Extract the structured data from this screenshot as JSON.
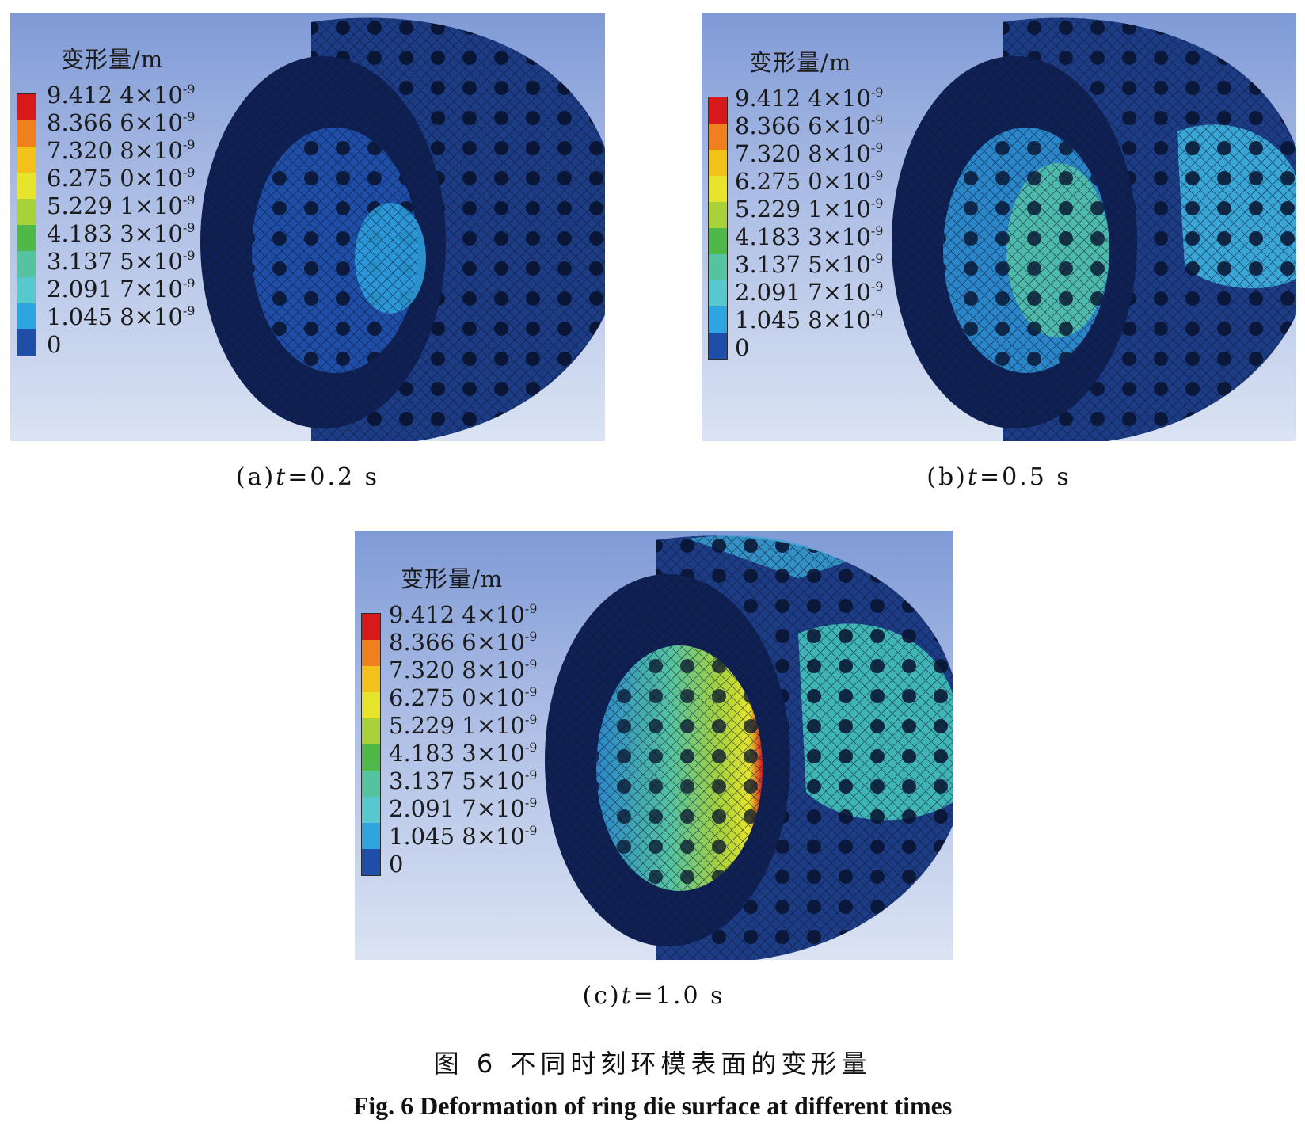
{
  "legend": {
    "title": "变形量/m",
    "ticks": [
      {
        "mantissa": "9.412 4×10",
        "exp": "-9"
      },
      {
        "mantissa": "8.366 6×10",
        "exp": "-9"
      },
      {
        "mantissa": "7.320 8×10",
        "exp": "-9"
      },
      {
        "mantissa": "6.275 0×10",
        "exp": "-9"
      },
      {
        "mantissa": "5.229 1×10",
        "exp": "-9"
      },
      {
        "mantissa": "4.183 3×10",
        "exp": "-9"
      },
      {
        "mantissa": "3.137 5×10",
        "exp": "-9"
      },
      {
        "mantissa": "2.091 7×10",
        "exp": "-9"
      },
      {
        "mantissa": "1.045 8×10",
        "exp": "-9"
      },
      {
        "mantissa": "0",
        "exp": ""
      }
    ],
    "colors": [
      "#d7191c",
      "#f07f1d",
      "#f3c21a",
      "#e6e52b",
      "#a9d23a",
      "#4fb848",
      "#55c39f",
      "#58c8cf",
      "#2ea4e0",
      "#1f4ea8"
    ]
  },
  "panels": [
    {
      "id": "a",
      "caption_prefix": "(a)",
      "var": "t",
      "caption_suffix": "=0.2 s"
    },
    {
      "id": "b",
      "caption_prefix": "(b)",
      "var": "t",
      "caption_suffix": "=0.5 s"
    },
    {
      "id": "c",
      "caption_prefix": "(c)",
      "var": "t",
      "caption_suffix": "=1.0 s"
    }
  ],
  "figure": {
    "caption_cn": "图 6  不同时刻环模表面的变形量",
    "caption_en": "Fig. 6   Deformation of ring die surface at different times"
  }
}
